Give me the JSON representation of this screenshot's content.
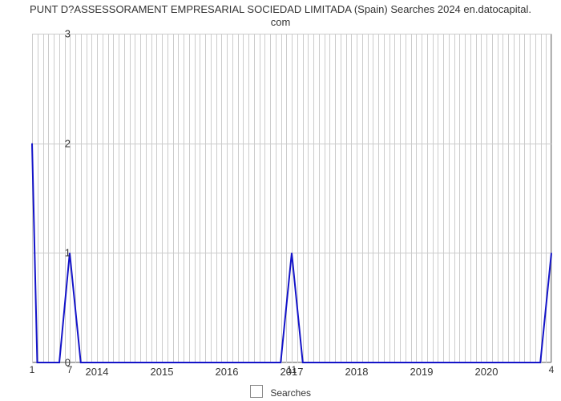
{
  "chart": {
    "type": "line",
    "title_line1": "PUNT D?ASSESSORAMENT EMPRESARIAL SOCIEDAD LIMITADA (Spain) Searches 2024 en.datocapital.",
    "title_line2": "com",
    "title_fontsize": 13,
    "title_color": "#333333",
    "background_color": "#ffffff",
    "grid_color": "#cccccc",
    "axis_border_color": "#888888",
    "tick_font_size": 13,
    "tick_color": "#333333",
    "x": {
      "year_ticks": [
        2014,
        2015,
        2016,
        2017,
        2018,
        2019,
        2020
      ],
      "range_start": 2013.0,
      "range_end": 2021.0,
      "minor_per_year": 12
    },
    "y": {
      "ticks": [
        0,
        1,
        2,
        3
      ],
      "min": 0,
      "max": 3
    },
    "series": {
      "name": "Searches",
      "stroke": "#1414c8",
      "stroke_width": 2,
      "fill": "none",
      "points": [
        {
          "x": 2013.0,
          "y": 2.0
        },
        {
          "x": 2013.08,
          "y": 0.0
        },
        {
          "x": 2013.42,
          "y": 0.0
        },
        {
          "x": 2013.58,
          "y": 1.0
        },
        {
          "x": 2013.75,
          "y": 0.0
        },
        {
          "x": 2016.83,
          "y": 0.0
        },
        {
          "x": 2017.0,
          "y": 1.0
        },
        {
          "x": 2017.17,
          "y": 0.0
        },
        {
          "x": 2020.83,
          "y": 0.0
        },
        {
          "x": 2021.0,
          "y": 1.0
        }
      ]
    },
    "point_labels": [
      {
        "x": 2013.0,
        "text": "1",
        "dy": 14
      },
      {
        "x": 2013.58,
        "text": "7",
        "dy": 14
      },
      {
        "x": 2017.0,
        "text": "11",
        "dy": 14
      },
      {
        "x": 2021.0,
        "text": "4",
        "dy": 14
      }
    ],
    "legend": {
      "label": "Searches",
      "swatch_fill": "#ffffff",
      "swatch_border": "#888888"
    }
  }
}
